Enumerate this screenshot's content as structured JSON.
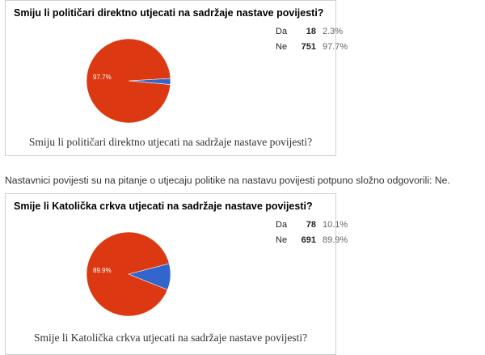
{
  "polls": [
    {
      "title": "Smiju li političari direktno utjecati na sadržaje nastave povijesti?",
      "caption": "Smiju li političari direktno utjecati na sadržaje nastave povijesti?",
      "slice_label": "97.7%",
      "legend": [
        {
          "label": "Da",
          "count": "18",
          "pct": "2.3%"
        },
        {
          "label": "Ne",
          "count": "751",
          "pct": "97.7%"
        }
      ]
    },
    {
      "title": "Smije li Katolička crkva utjecati na sadržaje nastave povijesti?",
      "caption": "Smije li Katolička crkva utjecati na sadržaje nastave povijesti?",
      "slice_label": "89.9%",
      "legend": [
        {
          "label": "Da",
          "count": "78",
          "pct": "10.1%"
        },
        {
          "label": "Ne",
          "count": "691",
          "pct": "89.9%"
        }
      ]
    }
  ],
  "paragraph": "Nastavnici povijesti su na pitanje o utjecaju politike na nastavu povijesti potpuno složno odgovorili: Ne.",
  "colors": {
    "da": "#3366cc",
    "ne": "#dc3912",
    "slice_label": "#ffffff"
  },
  "chart_data": [
    {
      "type": "pie",
      "title": "Smiju li političari direktno utjecati na sadržaje nastave povijesti?",
      "categories": [
        "Da",
        "Ne"
      ],
      "values": [
        18,
        751
      ],
      "percentages": [
        2.3,
        97.7
      ]
    },
    {
      "type": "pie",
      "title": "Smije li Katolička crkva utjecati na sadržaje nastave povijesti?",
      "categories": [
        "Da",
        "Ne"
      ],
      "values": [
        78,
        691
      ],
      "percentages": [
        10.1,
        89.9
      ]
    }
  ]
}
